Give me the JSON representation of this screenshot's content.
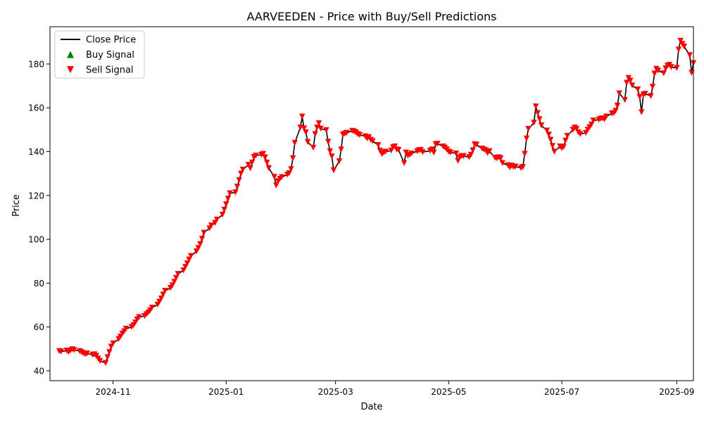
{
  "chart_data": {
    "type": "line",
    "title": "AARVEEDEN - Price with Buy/Sell Predictions",
    "xlabel": "Date",
    "ylabel": "Price",
    "xlim": [
      "2024-09-28",
      "2025-09-10"
    ],
    "ylim": [
      35.5,
      197
    ],
    "x_ticks": [
      "2024-11-01",
      "2025-01-01",
      "2025-03-01",
      "2025-05-01",
      "2025-07-01",
      "2025-09-01"
    ],
    "x_tick_labels": [
      "2024-11",
      "2025-01",
      "2025-03",
      "2025-05",
      "2025-07",
      "2025-09"
    ],
    "y_ticks": [
      40,
      60,
      80,
      100,
      120,
      140,
      160,
      180
    ],
    "y_tick_labels": [
      "40",
      "60",
      "80",
      "100",
      "120",
      "140",
      "160",
      "180"
    ],
    "grid": false,
    "legend": {
      "placement": "top-left",
      "entries": [
        {
          "label": "Close Price",
          "kind": "line",
          "color": "#000000"
        },
        {
          "label": "Buy Signal",
          "kind": "triangle-up",
          "color": "#008000"
        },
        {
          "label": "Sell Signal",
          "kind": "triangle-down",
          "color": "#ff0000"
        }
      ]
    },
    "series": [
      {
        "name": "Close Price",
        "color": "#000000",
        "points": [
          [
            "2024-10-03",
            49.0
          ],
          [
            "2024-10-04",
            48.8
          ],
          [
            "2024-10-07",
            49.2
          ],
          [
            "2024-10-08",
            48.6
          ],
          [
            "2024-10-09",
            49.3
          ],
          [
            "2024-10-10",
            49.8
          ],
          [
            "2024-10-11",
            49.5
          ],
          [
            "2024-10-14",
            49.0
          ],
          [
            "2024-10-15",
            48.5
          ],
          [
            "2024-10-16",
            48.0
          ],
          [
            "2024-10-17",
            47.6
          ],
          [
            "2024-10-18",
            47.9
          ],
          [
            "2024-10-21",
            47.3
          ],
          [
            "2024-10-22",
            47.5
          ],
          [
            "2024-10-23",
            46.8
          ],
          [
            "2024-10-24",
            45.6
          ],
          [
            "2024-10-25",
            44.5
          ],
          [
            "2024-10-28",
            43.6
          ],
          [
            "2024-10-29",
            46.2
          ],
          [
            "2024-10-30",
            48.5
          ],
          [
            "2024-10-31",
            51.0
          ],
          [
            "2024-11-01",
            52.5
          ],
          [
            "2024-11-04",
            54.5
          ],
          [
            "2024-11-05",
            55.6
          ],
          [
            "2024-11-06",
            57.0
          ],
          [
            "2024-11-07",
            58.0
          ],
          [
            "2024-11-08",
            59.2
          ],
          [
            "2024-11-11",
            60.0
          ],
          [
            "2024-11-12",
            60.8
          ],
          [
            "2024-11-13",
            62.0
          ],
          [
            "2024-11-14",
            63.4
          ],
          [
            "2024-11-15",
            64.5
          ],
          [
            "2024-11-18",
            65.0
          ],
          [
            "2024-11-19",
            65.8
          ],
          [
            "2024-11-20",
            66.6
          ],
          [
            "2024-11-21",
            67.6
          ],
          [
            "2024-11-22",
            68.8
          ],
          [
            "2024-11-25",
            70.2
          ],
          [
            "2024-11-26",
            71.5
          ],
          [
            "2024-11-27",
            73.0
          ],
          [
            "2024-11-28",
            74.8
          ],
          [
            "2024-11-29",
            76.5
          ],
          [
            "2024-12-02",
            77.8
          ],
          [
            "2024-12-03",
            79.0
          ],
          [
            "2024-12-04",
            80.6
          ],
          [
            "2024-12-05",
            82.4
          ],
          [
            "2024-12-06",
            84.2
          ],
          [
            "2024-12-09",
            85.8
          ],
          [
            "2024-12-10",
            87.4
          ],
          [
            "2024-12-11",
            89.0
          ],
          [
            "2024-12-12",
            90.8
          ],
          [
            "2024-12-13",
            92.4
          ],
          [
            "2024-12-16",
            94.5
          ],
          [
            "2024-12-17",
            96.0
          ],
          [
            "2024-12-18",
            97.8
          ],
          [
            "2024-12-19",
            100.2
          ],
          [
            "2024-12-20",
            103.0
          ],
          [
            "2024-12-23",
            105.0
          ],
          [
            "2024-12-24",
            106.3
          ],
          [
            "2024-12-26",
            107.5
          ],
          [
            "2024-12-27",
            109.0
          ],
          [
            "2024-12-30",
            111.2
          ],
          [
            "2024-12-31",
            113.5
          ],
          [
            "2025-01-01",
            116.0
          ],
          [
            "2025-01-02",
            118.5
          ],
          [
            "2025-01-03",
            121.0
          ],
          [
            "2025-01-06",
            121.4
          ],
          [
            "2025-01-07",
            124.0
          ],
          [
            "2025-01-08",
            127.0
          ],
          [
            "2025-01-09",
            130.0
          ],
          [
            "2025-01-10",
            131.8
          ],
          [
            "2025-01-13",
            134.0
          ],
          [
            "2025-01-14",
            132.4
          ],
          [
            "2025-01-15",
            135.0
          ],
          [
            "2025-01-16",
            137.5
          ],
          [
            "2025-01-17",
            138.2
          ],
          [
            "2025-01-20",
            138.6
          ],
          [
            "2025-01-21",
            139.0
          ],
          [
            "2025-01-22",
            137.4
          ],
          [
            "2025-01-23",
            135.0
          ],
          [
            "2025-01-24",
            132.5
          ],
          [
            "2025-01-27",
            128.5
          ],
          [
            "2025-01-28",
            124.6
          ],
          [
            "2025-01-29",
            126.5
          ],
          [
            "2025-01-30",
            127.6
          ],
          [
            "2025-01-31",
            128.4
          ],
          [
            "2025-02-03",
            129.5
          ],
          [
            "2025-02-04",
            130.2
          ],
          [
            "2025-02-05",
            132.0
          ],
          [
            "2025-02-06",
            137.0
          ],
          [
            "2025-02-07",
            144.0
          ],
          [
            "2025-02-10",
            151.0
          ],
          [
            "2025-02-11",
            156.0
          ],
          [
            "2025-02-12",
            150.6
          ],
          [
            "2025-02-13",
            148.8
          ],
          [
            "2025-02-14",
            144.4
          ],
          [
            "2025-02-17",
            141.8
          ],
          [
            "2025-02-18",
            148.0
          ],
          [
            "2025-02-19",
            151.0
          ],
          [
            "2025-02-20",
            153.0
          ],
          [
            "2025-02-21",
            150.5
          ],
          [
            "2025-02-24",
            149.8
          ],
          [
            "2025-02-25",
            144.5
          ],
          [
            "2025-02-26",
            140.2
          ],
          [
            "2025-02-27",
            137.8
          ],
          [
            "2025-02-28",
            131.5
          ],
          [
            "2025-03-03",
            135.6
          ],
          [
            "2025-03-04",
            141.0
          ],
          [
            "2025-03-05",
            147.8
          ],
          [
            "2025-03-06",
            148.2
          ],
          [
            "2025-03-07",
            148.6
          ],
          [
            "2025-03-10",
            149.5
          ],
          [
            "2025-03-11",
            149.2
          ],
          [
            "2025-03-12",
            148.8
          ],
          [
            "2025-03-13",
            148.0
          ],
          [
            "2025-03-14",
            147.6
          ],
          [
            "2025-03-17",
            147.0
          ],
          [
            "2025-03-18",
            146.0
          ],
          [
            "2025-03-19",
            146.6
          ],
          [
            "2025-03-20",
            145.4
          ],
          [
            "2025-03-21",
            144.8
          ],
          [
            "2025-03-24",
            143.0
          ],
          [
            "2025-03-25",
            140.4
          ],
          [
            "2025-03-26",
            139.0
          ],
          [
            "2025-03-27",
            139.6
          ],
          [
            "2025-03-28",
            140.0
          ],
          [
            "2025-03-31",
            140.5
          ],
          [
            "2025-04-01",
            142.0
          ],
          [
            "2025-04-02",
            142.4
          ],
          [
            "2025-04-03",
            141.0
          ],
          [
            "2025-04-04",
            140.8
          ],
          [
            "2025-04-07",
            134.8
          ],
          [
            "2025-04-08",
            139.6
          ],
          [
            "2025-04-09",
            138.2
          ],
          [
            "2025-04-10",
            138.6
          ],
          [
            "2025-04-11",
            139.2
          ],
          [
            "2025-04-14",
            140.2
          ],
          [
            "2025-04-15",
            140.6
          ],
          [
            "2025-04-16",
            140.8
          ],
          [
            "2025-04-17",
            139.8
          ],
          [
            "2025-04-21",
            140.4
          ],
          [
            "2025-04-22",
            141.0
          ],
          [
            "2025-04-23",
            139.6
          ],
          [
            "2025-04-24",
            143.4
          ],
          [
            "2025-04-25",
            143.6
          ],
          [
            "2025-04-28",
            142.4
          ],
          [
            "2025-04-29",
            141.8
          ],
          [
            "2025-04-30",
            141.0
          ],
          [
            "2025-05-01",
            140.0
          ],
          [
            "2025-05-02",
            139.6
          ],
          [
            "2025-05-05",
            139.2
          ],
          [
            "2025-05-06",
            135.8
          ],
          [
            "2025-05-07",
            137.4
          ],
          [
            "2025-05-08",
            138.0
          ],
          [
            "2025-05-09",
            138.0
          ],
          [
            "2025-05-12",
            137.5
          ],
          [
            "2025-05-13",
            138.6
          ],
          [
            "2025-05-14",
            140.6
          ],
          [
            "2025-05-15",
            143.4
          ],
          [
            "2025-05-16",
            143.2
          ],
          [
            "2025-05-19",
            141.4
          ],
          [
            "2025-05-20",
            141.0
          ],
          [
            "2025-05-21",
            140.6
          ],
          [
            "2025-05-22",
            139.4
          ],
          [
            "2025-05-23",
            140.2
          ],
          [
            "2025-05-26",
            137.2
          ],
          [
            "2025-05-27",
            137.0
          ],
          [
            "2025-05-28",
            137.4
          ],
          [
            "2025-05-29",
            137.0
          ],
          [
            "2025-05-30",
            134.8
          ],
          [
            "2025-06-02",
            133.8
          ],
          [
            "2025-06-03",
            132.8
          ],
          [
            "2025-06-04",
            133.6
          ],
          [
            "2025-06-05",
            133.0
          ],
          [
            "2025-06-06",
            133.2
          ],
          [
            "2025-06-09",
            132.6
          ],
          [
            "2025-06-10",
            133.0
          ],
          [
            "2025-06-11",
            139.0
          ],
          [
            "2025-06-12",
            146.0
          ],
          [
            "2025-06-13",
            150.4
          ],
          [
            "2025-06-16",
            153.2
          ],
          [
            "2025-06-17",
            160.6
          ],
          [
            "2025-06-18",
            157.6
          ],
          [
            "2025-06-19",
            154.8
          ],
          [
            "2025-06-20",
            152.0
          ],
          [
            "2025-06-23",
            149.6
          ],
          [
            "2025-06-24",
            147.8
          ],
          [
            "2025-06-25",
            145.4
          ],
          [
            "2025-06-26",
            142.6
          ],
          [
            "2025-06-27",
            140.0
          ],
          [
            "2025-06-30",
            142.4
          ],
          [
            "2025-07-01",
            141.6
          ],
          [
            "2025-07-02",
            142.2
          ],
          [
            "2025-07-03",
            145.0
          ],
          [
            "2025-07-04",
            147.2
          ],
          [
            "2025-07-07",
            150.0
          ],
          [
            "2025-07-08",
            151.0
          ],
          [
            "2025-07-09",
            150.4
          ],
          [
            "2025-07-10",
            148.8
          ],
          [
            "2025-07-11",
            148.0
          ],
          [
            "2025-07-14",
            148.6
          ],
          [
            "2025-07-15",
            150.0
          ],
          [
            "2025-07-16",
            151.2
          ],
          [
            "2025-07-17",
            152.4
          ],
          [
            "2025-07-18",
            154.2
          ],
          [
            "2025-07-21",
            154.6
          ],
          [
            "2025-07-22",
            155.0
          ],
          [
            "2025-07-23",
            155.2
          ],
          [
            "2025-07-24",
            154.8
          ],
          [
            "2025-07-25",
            156.0
          ],
          [
            "2025-07-28",
            157.4
          ],
          [
            "2025-07-29",
            157.6
          ],
          [
            "2025-07-30",
            158.6
          ],
          [
            "2025-07-31",
            161.0
          ],
          [
            "2025-08-01",
            166.6
          ],
          [
            "2025-08-04",
            163.6
          ],
          [
            "2025-08-05",
            171.4
          ],
          [
            "2025-08-06",
            173.6
          ],
          [
            "2025-08-07",
            172.4
          ],
          [
            "2025-08-08",
            170.2
          ],
          [
            "2025-08-11",
            168.4
          ],
          [
            "2025-08-12",
            165.0
          ],
          [
            "2025-08-13",
            158.0
          ],
          [
            "2025-08-14",
            166.0
          ],
          [
            "2025-08-15",
            166.4
          ],
          [
            "2025-08-18",
            165.4
          ],
          [
            "2025-08-19",
            169.6
          ],
          [
            "2025-08-20",
            175.6
          ],
          [
            "2025-08-21",
            177.8
          ],
          [
            "2025-08-22",
            177.0
          ],
          [
            "2025-08-25",
            175.8
          ],
          [
            "2025-08-26",
            178.0
          ],
          [
            "2025-08-27",
            179.2
          ],
          [
            "2025-08-28",
            179.6
          ],
          [
            "2025-08-29",
            178.6
          ],
          [
            "2025-09-01",
            178.2
          ],
          [
            "2025-09-02",
            186.6
          ],
          [
            "2025-09-03",
            190.6
          ],
          [
            "2025-09-04",
            189.2
          ],
          [
            "2025-09-05",
            188.0
          ],
          [
            "2025-09-08",
            184.0
          ],
          [
            "2025-09-09",
            176.0
          ],
          [
            "2025-09-10",
            180.4
          ]
        ]
      }
    ],
    "signals": {
      "buy": {
        "name": "Buy Signal",
        "color": "#008000",
        "points": []
      },
      "sell": {
        "name": "Sell Signal",
        "color": "#ff0000",
        "marker": "triangle-down",
        "at": "every_close_point"
      }
    }
  }
}
